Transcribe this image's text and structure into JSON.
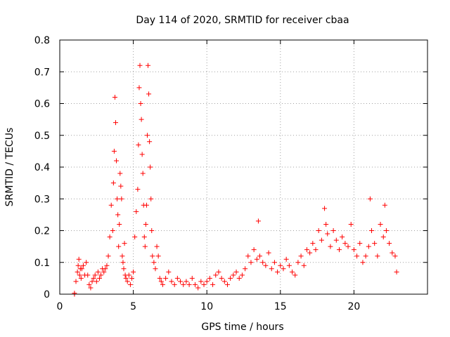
{
  "chart_data": {
    "type": "scatter",
    "title": "Day 114 of 2020, SRMTID for receiver cbaa",
    "xlabel": "GPS time / hours",
    "ylabel": "SRMTID / TECUs",
    "xlim": [
      0,
      25
    ],
    "ylim": [
      0,
      0.8
    ],
    "xticks": [
      0,
      5,
      10,
      15,
      20
    ],
    "yticks": [
      0,
      0.1,
      0.2,
      0.3,
      0.4,
      0.5,
      0.6,
      0.7,
      0.8
    ],
    "xtick_labels": [
      "0",
      "5",
      "10",
      "15",
      "20"
    ],
    "ytick_labels": [
      "0",
      "0.1",
      "0.2",
      "0.3",
      "0.4",
      "0.5",
      "0.6",
      "0.7",
      "0.8"
    ],
    "grid": true,
    "marker": "+",
    "color": "#ff0000",
    "series": [
      {
        "name": "SRMTID",
        "x": [
          1.0,
          1.0,
          1.1,
          1.2,
          1.25,
          1.3,
          1.35,
          1.4,
          1.45,
          1.5,
          1.6,
          1.7,
          1.8,
          1.9,
          2.0,
          2.1,
          2.2,
          2.3,
          2.4,
          2.5,
          2.6,
          2.7,
          2.8,
          2.9,
          3.0,
          3.1,
          3.2,
          3.3,
          3.4,
          3.5,
          3.6,
          3.65,
          3.7,
          3.75,
          3.8,
          3.85,
          3.9,
          3.95,
          4.0,
          4.05,
          4.1,
          4.15,
          4.2,
          4.25,
          4.3,
          4.35,
          4.4,
          4.45,
          4.5,
          4.6,
          4.7,
          4.8,
          4.9,
          5.0,
          5.1,
          5.2,
          5.3,
          5.35,
          5.4,
          5.45,
          5.5,
          5.55,
          5.6,
          5.65,
          5.7,
          5.75,
          5.8,
          5.85,
          5.9,
          5.95,
          6.0,
          6.05,
          6.1,
          6.15,
          6.2,
          6.25,
          6.3,
          6.4,
          6.5,
          6.6,
          6.7,
          6.8,
          6.9,
          7.0,
          7.2,
          7.4,
          7.6,
          7.8,
          8.0,
          8.2,
          8.4,
          8.6,
          8.8,
          9.0,
          9.2,
          9.4,
          9.6,
          9.8,
          10.0,
          10.2,
          10.4,
          10.6,
          10.8,
          11.0,
          11.2,
          11.4,
          11.6,
          11.8,
          12.0,
          12.2,
          12.4,
          12.6,
          12.8,
          13.0,
          13.2,
          13.4,
          13.5,
          13.6,
          13.8,
          14.0,
          14.2,
          14.4,
          14.6,
          14.8,
          15.0,
          15.2,
          15.4,
          15.6,
          15.8,
          16.0,
          16.2,
          16.4,
          16.6,
          16.8,
          17.0,
          17.2,
          17.4,
          17.6,
          17.8,
          18.0,
          18.1,
          18.2,
          18.4,
          18.6,
          18.8,
          19.0,
          19.2,
          19.4,
          19.6,
          19.8,
          20.0,
          20.2,
          20.4,
          20.6,
          20.8,
          21.0,
          21.1,
          21.2,
          21.4,
          21.6,
          21.8,
          22.0,
          22.1,
          22.2,
          22.4,
          22.6,
          22.8,
          22.9
        ],
        "y": [
          0.0,
          0.003,
          0.04,
          0.07,
          0.09,
          0.11,
          0.06,
          0.08,
          0.05,
          0.08,
          0.09,
          0.06,
          0.1,
          0.06,
          0.03,
          0.02,
          0.04,
          0.05,
          0.06,
          0.04,
          0.07,
          0.05,
          0.06,
          0.08,
          0.07,
          0.08,
          0.09,
          0.12,
          0.18,
          0.28,
          0.2,
          0.35,
          0.45,
          0.62,
          0.54,
          0.42,
          0.3,
          0.25,
          0.15,
          0.22,
          0.38,
          0.34,
          0.3,
          0.12,
          0.1,
          0.08,
          0.16,
          0.06,
          0.05,
          0.04,
          0.06,
          0.03,
          0.05,
          0.07,
          0.18,
          0.26,
          0.33,
          0.47,
          0.65,
          0.72,
          0.6,
          0.55,
          0.44,
          0.38,
          0.28,
          0.18,
          0.15,
          0.22,
          0.28,
          0.5,
          0.72,
          0.63,
          0.48,
          0.4,
          0.3,
          0.2,
          0.12,
          0.1,
          0.08,
          0.15,
          0.12,
          0.05,
          0.04,
          0.03,
          0.05,
          0.07,
          0.04,
          0.03,
          0.05,
          0.04,
          0.03,
          0.04,
          0.03,
          0.05,
          0.03,
          0.02,
          0.04,
          0.03,
          0.04,
          0.05,
          0.03,
          0.06,
          0.07,
          0.05,
          0.04,
          0.03,
          0.05,
          0.06,
          0.07,
          0.05,
          0.06,
          0.08,
          0.12,
          0.1,
          0.14,
          0.11,
          0.23,
          0.12,
          0.1,
          0.09,
          0.13,
          0.08,
          0.1,
          0.07,
          0.09,
          0.08,
          0.11,
          0.09,
          0.07,
          0.06,
          0.1,
          0.12,
          0.09,
          0.14,
          0.13,
          0.16,
          0.14,
          0.2,
          0.17,
          0.27,
          0.22,
          0.19,
          0.15,
          0.2,
          0.17,
          0.14,
          0.18,
          0.16,
          0.15,
          0.22,
          0.14,
          0.12,
          0.16,
          0.1,
          0.12,
          0.15,
          0.3,
          0.2,
          0.16,
          0.12,
          0.22,
          0.18,
          0.28,
          0.2,
          0.16,
          0.13,
          0.12,
          0.07
        ]
      }
    ]
  }
}
